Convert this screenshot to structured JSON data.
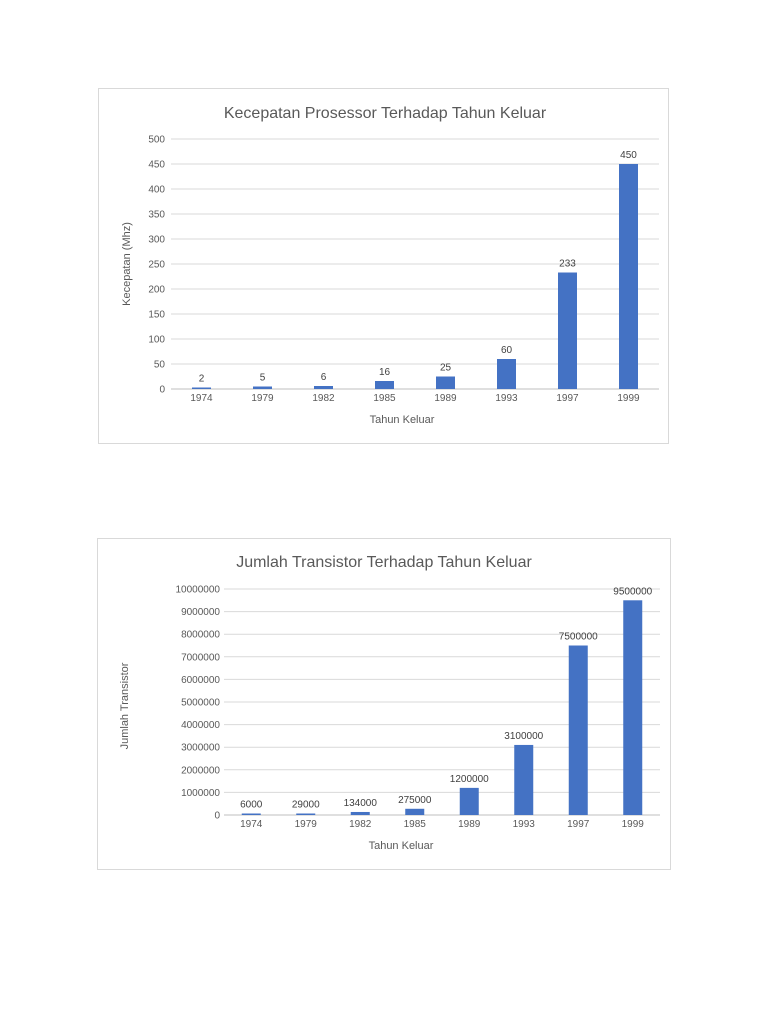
{
  "chart_data": [
    {
      "type": "bar",
      "title": "Kecepatan Prosessor Terhadap Tahun Keluar",
      "xlabel": "Tahun Keluar",
      "ylabel": "Kecepatan (Mhz)",
      "categories": [
        "1974",
        "1979",
        "1982",
        "1985",
        "1989",
        "1993",
        "1997",
        "1999"
      ],
      "values": [
        2,
        5,
        6,
        16,
        25,
        60,
        233,
        450
      ],
      "ylim": [
        0,
        500
      ],
      "yticks": [
        "0",
        "50",
        "100",
        "150",
        "200",
        "250",
        "300",
        "350",
        "400",
        "450",
        "500"
      ],
      "data_labels": [
        "2",
        "5",
        "6",
        "16",
        "25",
        "60",
        "233",
        "450"
      ],
      "grid": true,
      "legend": "none",
      "bar_color": "#4472c4"
    },
    {
      "type": "bar",
      "title": "Jumlah Transistor Terhadap Tahun Keluar",
      "xlabel": "Tahun Keluar",
      "ylabel": "Jumlah Transistor",
      "categories": [
        "1974",
        "1979",
        "1982",
        "1985",
        "1989",
        "1993",
        "1997",
        "1999"
      ],
      "values": [
        6000,
        29000,
        134000,
        275000,
        1200000,
        3100000,
        7500000,
        9500000
      ],
      "ylim": [
        0,
        10000000
      ],
      "yticks": [
        "0",
        "1000000",
        "2000000",
        "3000000",
        "4000000",
        "5000000",
        "6000000",
        "7000000",
        "8000000",
        "9000000",
        "10000000"
      ],
      "data_labels": [
        "6000",
        "29000",
        "134000",
        "275000",
        "1200000",
        "3100000",
        "7500000",
        "9500000"
      ],
      "grid": true,
      "legend": "none",
      "bar_color": "#4472c4"
    }
  ]
}
